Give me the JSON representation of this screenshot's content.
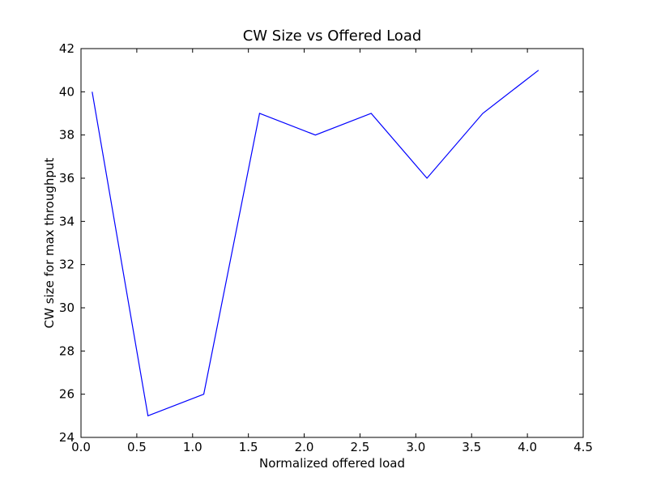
{
  "chart_data": {
    "type": "line",
    "title": "CW Size vs Offered Load",
    "xlabel": "Normalized offered load",
    "ylabel": "CW size for max throughput",
    "xlim": [
      0.0,
      4.5
    ],
    "ylim": [
      24,
      42
    ],
    "xticks": [
      "0.0",
      "0.5",
      "1.0",
      "1.5",
      "2.0",
      "2.5",
      "3.0",
      "3.5",
      "4.0",
      "4.5"
    ],
    "yticks": [
      "24",
      "26",
      "28",
      "30",
      "32",
      "34",
      "36",
      "38",
      "40",
      "42"
    ],
    "grid": false,
    "series": [
      {
        "color": "#0000ff",
        "x": [
          0.1,
          0.6,
          1.1,
          1.6,
          2.1,
          2.6,
          3.1,
          3.6,
          4.1
        ],
        "y": [
          40,
          25,
          26,
          39,
          38,
          39,
          36,
          39,
          41
        ]
      }
    ]
  }
}
